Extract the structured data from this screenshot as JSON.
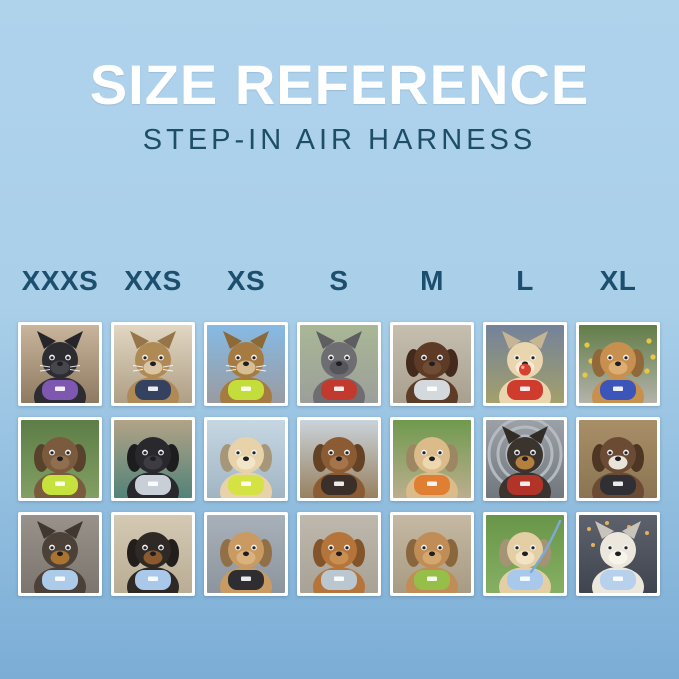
{
  "header": {
    "title": "SIZE REFERENCE",
    "subtitle": "STEP-IN AIR HARNESS"
  },
  "palette": {
    "background_top": "#aed2ec",
    "background_bottom": "#7badd5",
    "title_color": "#ffffff",
    "subtitle_color": "#1d4e68",
    "size_label_color": "#1c4f6e",
    "photo_border": "#ffffff"
  },
  "sizes": [
    "XXXS",
    "XXS",
    "XS",
    "S",
    "M",
    "L",
    "XL"
  ],
  "grid": {
    "rows": [
      [
        {
          "size": "XXXS",
          "animal": "cat",
          "ears": "pointy",
          "fur": "#2c2c31",
          "muzzle": "#46464d",
          "harness": "#7e57b0",
          "bg_top": "#c8b59b",
          "bg_bottom": "#8e7a61",
          "extra": "none",
          "description": "Black kitten wearing a purple step-in harness indoors"
        },
        {
          "size": "XXS",
          "animal": "cat",
          "ears": "pointy",
          "fur": "#b08a55",
          "muzzle": "#d9c5a4",
          "harness": "#34425f",
          "bg_top": "#e2d7c3",
          "bg_bottom": "#ae9f85",
          "extra": "none",
          "description": "Tabby cat wearing a navy harness looking out a window"
        },
        {
          "size": "XS",
          "animal": "cat",
          "ears": "pointy",
          "fur": "#a57b41",
          "muzzle": "#d6bd92",
          "harness": "#c3dd3a",
          "bg_top": "#85bae5",
          "bg_bottom": "#9a9ba0",
          "extra": "none",
          "description": "Bengal cat in a car wearing a neon green harness"
        },
        {
          "size": "S",
          "animal": "dog",
          "ears": "pointy",
          "fur": "#6e6d72",
          "muzzle": "#55555b",
          "harness": "#c23a2e",
          "bg_top": "#a9b795",
          "bg_bottom": "#9c9f9a",
          "extra": "none",
          "description": "Grey French Bulldog wearing a red harness on a path"
        },
        {
          "size": "M",
          "animal": "dog",
          "ears": "floppy",
          "fur": "#5d3b27",
          "muzzle": "#6f4c33",
          "harness": "#d4d9dd",
          "bg_top": "#c6bfb0",
          "bg_bottom": "#a89f8f",
          "extra": "none",
          "description": "Chocolate long-haired dog wearing a grey harness on concrete"
        },
        {
          "size": "L",
          "animal": "dog",
          "ears": "pointy",
          "fur": "#e9d5ae",
          "muzzle": "#f6ecd8",
          "harness": "#cf3b2d",
          "bg_top": "#73829b",
          "bg_bottom": "#a3a06b",
          "extra": "ball",
          "description": "Cream Shiba Inu holding a red ball, wearing a red harness in a field"
        },
        {
          "size": "XL",
          "animal": "dog",
          "ears": "floppy",
          "fur": "#c8904f",
          "muzzle": "#dcae72",
          "harness": "#3c55b9",
          "bg_top": "#627d47",
          "bg_bottom": "#b3b3aa",
          "extra": "flowers",
          "description": "Golden Retriever wearing a blue harness on a garden path with yellow flowers"
        }
      ],
      [
        {
          "size": "XXXS",
          "animal": "dog",
          "ears": "floppy",
          "fur": "#7b5b3d",
          "muzzle": "#8f6f4e",
          "harness": "#c6e23c",
          "bg_top": "#5d7d47",
          "bg_bottom": "#82a064",
          "extra": "none",
          "description": "Wavy-coated brown puppy wearing a neon green harness in a garden"
        },
        {
          "size": "XXS",
          "animal": "dog",
          "ears": "floppy",
          "fur": "#28282d",
          "muzzle": "#3c3c42",
          "harness": "#c9cfd6",
          "bg_top": "#b2a386",
          "bg_bottom": "#518379",
          "extra": "none",
          "description": "Black pug puppy wearing a light grey harness on a teal blanket"
        },
        {
          "size": "XS",
          "animal": "dog",
          "ears": "floppy",
          "fur": "#e7d2a9",
          "muzzle": "#f2e6c9",
          "harness": "#d5e243",
          "bg_top": "#c6d7e3",
          "bg_bottom": "#a0b5c3",
          "extra": "none",
          "description": "Cream long-haired dachshund wearing a neon harness on a boat"
        },
        {
          "size": "S",
          "animal": "dog",
          "ears": "floppy",
          "fur": "#8b5b34",
          "muzzle": "#a5744a",
          "harness": "#3b3029",
          "bg_top": "#cad3db",
          "bg_bottom": "#98815f",
          "extra": "none",
          "description": "Long-haired dachshund wearing a dark harness on a waterside dock"
        },
        {
          "size": "M",
          "animal": "dog",
          "ears": "floppy",
          "fur": "#dabb89",
          "muzzle": "#ecd7ae",
          "harness": "#e07e32",
          "bg_top": "#6f9a4e",
          "bg_bottom": "#bcae8e",
          "extra": "none",
          "description": "Smiling Golden Retriever puppy wearing an orange harness on a lawn"
        },
        {
          "size": "L",
          "animal": "dog",
          "ears": "pointy",
          "fur": "#3b342e",
          "muzzle": "#b5803f",
          "harness": "#b23428",
          "bg_top": "#9ba1a7",
          "bg_bottom": "#70777d",
          "extra": "tunnel",
          "description": "Black-and-tan dog wearing a harness inside a corrugated metal tunnel"
        },
        {
          "size": "XL",
          "animal": "dog",
          "ears": "floppy",
          "fur": "#6c4b34",
          "muzzle": "#e9e4da",
          "harness": "#303034",
          "bg_top": "#a98f68",
          "bg_bottom": "#8a7452",
          "extra": "none",
          "description": "Brown-and-white dog wearing a black harness on a wooden deck"
        }
      ],
      [
        {
          "size": "XXXS",
          "animal": "dog",
          "ears": "pointy",
          "fur": "#4b4138",
          "muzzle": "#a8742f",
          "harness": "#abcbe9",
          "bg_top": "#98928b",
          "bg_bottom": "#7b756e",
          "extra": "none",
          "description": "Yorkshire Terrier puppy wearing a light blue harness on sunny pavement"
        },
        {
          "size": "XXS",
          "animal": "dog",
          "ears": "floppy",
          "fur": "#2f2925",
          "muzzle": "#8a5a2e",
          "harness": "#a9c8ea",
          "bg_top": "#d4c9b3",
          "bg_bottom": "#b9ad94",
          "extra": "none",
          "description": "Black-and-tan dachshund puppy wearing a light blue harness in a car"
        },
        {
          "size": "XS",
          "animal": "dog",
          "ears": "floppy",
          "fur": "#c99b63",
          "muzzle": "#d9b27e",
          "harness": "#2e2e32",
          "bg_top": "#a8b1b9",
          "bg_bottom": "#8c959d",
          "extra": "none",
          "description": "Apricot poodle puppy wearing a black harness on a deck"
        },
        {
          "size": "S",
          "animal": "dog",
          "ears": "floppy",
          "fur": "#b5743a",
          "muzzle": "#c98f52",
          "harness": "#bac7d1",
          "bg_top": "#beb8ad",
          "bg_bottom": "#a8a296",
          "extra": "none",
          "description": "Red dachshund wearing a light grey harness on pavement"
        },
        {
          "size": "M",
          "animal": "dog",
          "ears": "floppy",
          "fur": "#c08d56",
          "muzzle": "#d4a76e",
          "harness": "#95bf48",
          "bg_top": "#c5b9a3",
          "bg_bottom": "#a89b83",
          "extra": "none",
          "description": "Goldendoodle wearing a green harness on a sidewalk"
        },
        {
          "size": "L",
          "animal": "dog",
          "ears": "floppy",
          "fur": "#e4cea3",
          "muzzle": "#f1e3c4",
          "harness": "#a9c9ec",
          "bg_top": "#689648",
          "bg_bottom": "#86af63",
          "extra": "leash",
          "description": "Golden Retriever puppy wearing a light blue harness and leash on grass"
        },
        {
          "size": "XL",
          "animal": "dog",
          "ears": "pointy",
          "fur": "#ece7dc",
          "muzzle": "#f7f4ec",
          "harness": "#b7d0ec",
          "bg_top": "#5d626d",
          "bg_bottom": "#40444e",
          "extra": "lights",
          "description": "White dog wearing a light blue harness on a city street at night"
        }
      ]
    ]
  }
}
